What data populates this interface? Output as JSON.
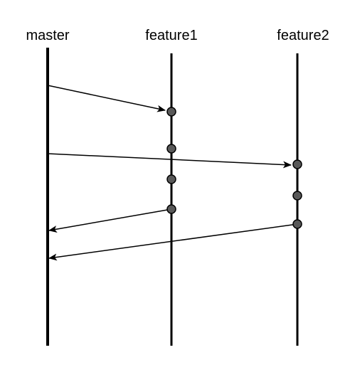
{
  "diagram": {
    "branches": {
      "master": {
        "label": "master"
      },
      "feature1": {
        "label": "feature1"
      },
      "feature2": {
        "label": "feature2"
      }
    },
    "colors": {
      "line": "#000000",
      "commit_fill": "#595959",
      "commit_stroke": "#000000",
      "background": "#ffffff"
    },
    "edges": [
      {
        "from": "master",
        "to": "feature1",
        "kind": "branch-off"
      },
      {
        "from": "master",
        "to": "feature2",
        "kind": "branch-off"
      },
      {
        "from": "feature1",
        "to": "master",
        "kind": "merge"
      },
      {
        "from": "feature2",
        "to": "master",
        "kind": "merge"
      }
    ],
    "commit_counts": {
      "feature1": 4,
      "feature2": 3
    }
  }
}
